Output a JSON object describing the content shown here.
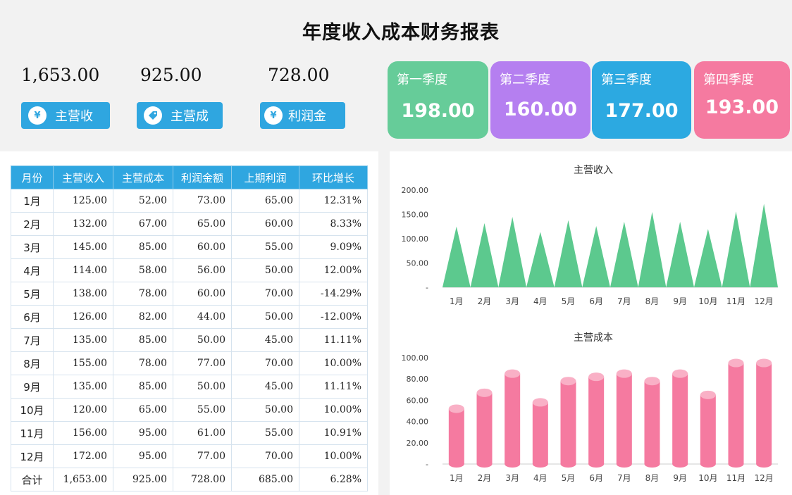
{
  "title": "年度收入成本财务报表",
  "kpis": [
    {
      "value": "1,653.00",
      "button": "主营收",
      "icon": "yen-coin-icon",
      "glyph": "¥"
    },
    {
      "value": "925.00",
      "button": "主营成",
      "icon": "tag-icon",
      "glyph": "●"
    },
    {
      "value": "728.00",
      "button": "利润金",
      "icon": "yen-refresh-icon",
      "glyph": "¥"
    }
  ],
  "quarters": [
    {
      "label": "第一季度",
      "value": "198.00",
      "color": "#66cc99"
    },
    {
      "label": "第二季度",
      "value": "160.00",
      "color": "#b57ff0"
    },
    {
      "label": "第三季度",
      "value": "177.00",
      "color": "#2ca9e1"
    },
    {
      "label": "第四季度",
      "value": "193.00",
      "color": "#f57aa0"
    }
  ],
  "table": {
    "headers": [
      "月份",
      "主营收入",
      "主营成本",
      "利润金额",
      "上期利润",
      "环比增长"
    ],
    "rows": [
      [
        "1月",
        "125.00",
        "52.00",
        "73.00",
        "65.00",
        "12.31%"
      ],
      [
        "2月",
        "132.00",
        "67.00",
        "65.00",
        "60.00",
        "8.33%"
      ],
      [
        "3月",
        "145.00",
        "85.00",
        "60.00",
        "55.00",
        "9.09%"
      ],
      [
        "4月",
        "114.00",
        "58.00",
        "56.00",
        "50.00",
        "12.00%"
      ],
      [
        "5月",
        "138.00",
        "78.00",
        "60.00",
        "70.00",
        "-14.29%"
      ],
      [
        "6月",
        "126.00",
        "82.00",
        "44.00",
        "50.00",
        "-12.00%"
      ],
      [
        "7月",
        "135.00",
        "85.00",
        "50.00",
        "45.00",
        "11.11%"
      ],
      [
        "8月",
        "155.00",
        "78.00",
        "77.00",
        "70.00",
        "10.00%"
      ],
      [
        "9月",
        "135.00",
        "85.00",
        "50.00",
        "45.00",
        "11.11%"
      ],
      [
        "10月",
        "120.00",
        "65.00",
        "55.00",
        "50.00",
        "10.00%"
      ],
      [
        "11月",
        "156.00",
        "95.00",
        "61.00",
        "55.00",
        "10.91%"
      ],
      [
        "12月",
        "172.00",
        "95.00",
        "77.00",
        "70.00",
        "10.00%"
      ]
    ],
    "total": [
      "合计",
      "1,653.00",
      "925.00",
      "728.00",
      "685.00",
      "6.28%"
    ]
  },
  "chart_data": [
    {
      "type": "area",
      "title": "主营收入",
      "categories": [
        "1月",
        "2月",
        "3月",
        "4月",
        "5月",
        "6月",
        "7月",
        "8月",
        "9月",
        "10月",
        "11月",
        "12月"
      ],
      "values": [
        125,
        132,
        145,
        114,
        138,
        126,
        135,
        155,
        135,
        120,
        156,
        172
      ],
      "yticks": [
        "-",
        "50.00",
        "100.00",
        "150.00",
        "200.00"
      ],
      "ylim": [
        0,
        200
      ],
      "color": "#5cc98e"
    },
    {
      "type": "bar",
      "title": "主营成本",
      "categories": [
        "1月",
        "2月",
        "3月",
        "4月",
        "5月",
        "6月",
        "7月",
        "8月",
        "9月",
        "10月",
        "11月",
        "12月"
      ],
      "values": [
        52,
        67,
        85,
        58,
        78,
        82,
        85,
        78,
        85,
        65,
        95,
        95
      ],
      "yticks": [
        "-",
        "20.00",
        "40.00",
        "60.00",
        "80.00",
        "100.00"
      ],
      "ylim": [
        0,
        100
      ],
      "color": "#f57aa0"
    }
  ]
}
